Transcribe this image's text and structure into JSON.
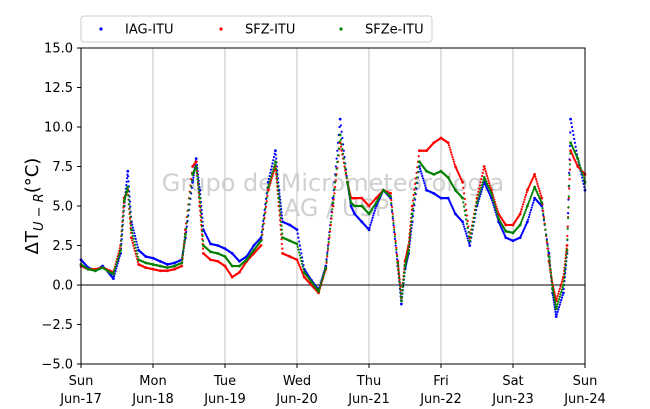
{
  "chart_data": {
    "type": "scatter",
    "title": "",
    "ylabel": "ΔT_{U−R}(°C)",
    "ylabel_parts": {
      "prefix": "ΔT",
      "sub": "U − R",
      "suffix": "(°C)"
    },
    "ylim": [
      -5.0,
      15.0
    ],
    "yticks": [
      "−5.0",
      "−2.5",
      "0.0",
      "2.5",
      "5.0",
      "7.5",
      "10.0",
      "12.5",
      "15.0"
    ],
    "ytick_values": [
      -5.0,
      -2.5,
      0.0,
      2.5,
      5.0,
      7.5,
      10.0,
      12.5,
      15.0
    ],
    "xlim": [
      0,
      7
    ],
    "xticks": [
      {
        "day": "Sun",
        "date": "Jun-17"
      },
      {
        "day": "Mon",
        "date": "Jun-18"
      },
      {
        "day": "Tue",
        "date": "Jun-19"
      },
      {
        "day": "Wed",
        "date": "Jun-20"
      },
      {
        "day": "Thu",
        "date": "Jun-21"
      },
      {
        "day": "Fri",
        "date": "Jun-22"
      },
      {
        "day": "Sat",
        "date": "Jun-23"
      },
      {
        "day": "Sun",
        "date": "Jun-24"
      }
    ],
    "grid": "vertical",
    "zero_line": true,
    "legend_placement": "top, above plot",
    "watermark": [
      "Grupo de Micrometeorologia",
      "IAG / USP"
    ],
    "series": [
      {
        "name": "IAG-ITU",
        "color": "#0000ff",
        "x": [
          0,
          0.1,
          0.2,
          0.3,
          0.4,
          0.45,
          0.55,
          0.6,
          0.65,
          0.7,
          0.8,
          0.9,
          1.0,
          1.1,
          1.2,
          1.3,
          1.4,
          1.45,
          1.55,
          1.6,
          1.65,
          1.7,
          1.8,
          1.9,
          2.0,
          2.1,
          2.2,
          2.3,
          2.4,
          2.5,
          2.6,
          2.7,
          2.75,
          2.8,
          2.9,
          3.0,
          3.1,
          3.2,
          3.3,
          3.4,
          3.5,
          3.6,
          3.7,
          3.75,
          3.8,
          3.9,
          4.0,
          4.1,
          4.2,
          4.3,
          4.4,
          4.45,
          4.5,
          4.55,
          4.6,
          4.7,
          4.8,
          4.9,
          5.0,
          5.1,
          5.2,
          5.3,
          5.4,
          5.5,
          5.6,
          5.7,
          5.8,
          5.9,
          6.0,
          6.1,
          6.2,
          6.3,
          6.4,
          6.5,
          6.55,
          6.6,
          6.7,
          6.75,
          6.8,
          6.9,
          7.0
        ],
        "y": [
          1.6,
          1.1,
          0.9,
          1.2,
          0.7,
          0.4,
          2.0,
          5.0,
          7.2,
          4.0,
          2.2,
          1.8,
          1.7,
          1.5,
          1.3,
          1.4,
          1.6,
          3.0,
          6.5,
          8.0,
          6.0,
          3.5,
          2.6,
          2.5,
          2.3,
          2.0,
          1.5,
          1.8,
          2.5,
          3.0,
          6.5,
          8.5,
          6.0,
          4.0,
          3.8,
          3.5,
          1.0,
          0.3,
          -0.3,
          1.2,
          5.5,
          10.5,
          6.5,
          5.0,
          4.5,
          4.0,
          3.5,
          5.0,
          6.0,
          5.5,
          1.2,
          -1.2,
          1.0,
          2.0,
          4.0,
          7.5,
          6.0,
          5.8,
          5.5,
          5.5,
          4.5,
          4.0,
          2.5,
          5.0,
          6.5,
          5.5,
          4.0,
          3.0,
          2.8,
          3.0,
          4.0,
          5.5,
          5.0,
          2.0,
          -0.5,
          -2.0,
          -0.5,
          2.0,
          10.5,
          8.0,
          6.0
        ]
      },
      {
        "name": "SFZ-ITU",
        "color": "#ff0000",
        "x": [
          0,
          0.1,
          0.2,
          0.3,
          0.4,
          0.45,
          0.55,
          0.6,
          0.65,
          0.7,
          0.8,
          0.9,
          1.0,
          1.1,
          1.2,
          1.3,
          1.4,
          1.45,
          1.55,
          1.6,
          1.65,
          1.7,
          1.8,
          1.9,
          2.0,
          2.1,
          2.2,
          2.3,
          2.4,
          2.5,
          2.6,
          2.7,
          2.75,
          2.8,
          2.9,
          3.0,
          3.1,
          3.2,
          3.3,
          3.4,
          3.5,
          3.6,
          3.7,
          3.75,
          3.8,
          3.9,
          4.0,
          4.1,
          4.2,
          4.3,
          4.4,
          4.45,
          4.5,
          4.55,
          4.6,
          4.7,
          4.8,
          4.9,
          5.0,
          5.1,
          5.2,
          5.3,
          5.4,
          5.5,
          5.6,
          5.7,
          5.8,
          5.9,
          6.0,
          6.1,
          6.2,
          6.3,
          6.4,
          6.5,
          6.55,
          6.6,
          6.7,
          6.75,
          6.8,
          6.9,
          7.0
        ],
        "y": [
          1.2,
          1.0,
          1.0,
          1.1,
          0.9,
          0.8,
          2.5,
          5.5,
          6.0,
          3.0,
          1.3,
          1.1,
          1.0,
          0.9,
          0.9,
          1.0,
          1.2,
          3.5,
          7.5,
          7.8,
          5.0,
          2.0,
          1.6,
          1.5,
          1.2,
          0.5,
          0.8,
          1.5,
          2.0,
          2.5,
          6.0,
          7.5,
          5.0,
          2.0,
          1.8,
          1.6,
          0.5,
          0.0,
          -0.5,
          1.0,
          5.0,
          9.0,
          6.5,
          5.5,
          5.5,
          5.5,
          5.0,
          5.5,
          6.0,
          5.8,
          1.5,
          -0.8,
          1.5,
          2.5,
          5.0,
          8.5,
          8.5,
          9.0,
          9.3,
          9.0,
          7.5,
          6.5,
          3.0,
          5.5,
          7.5,
          6.0,
          4.5,
          3.8,
          3.8,
          4.5,
          6.0,
          7.0,
          5.5,
          1.5,
          0.0,
          -1.0,
          0.5,
          2.5,
          8.5,
          7.5,
          7.0
        ]
      },
      {
        "name": "SFZe-ITU",
        "color": "#008000",
        "x": [
          0,
          0.1,
          0.2,
          0.3,
          0.4,
          0.45,
          0.55,
          0.6,
          0.65,
          0.7,
          0.8,
          0.9,
          1.0,
          1.1,
          1.2,
          1.3,
          1.4,
          1.45,
          1.55,
          1.6,
          1.65,
          1.7,
          1.8,
          1.9,
          2.0,
          2.1,
          2.2,
          2.3,
          2.4,
          2.5,
          2.6,
          2.7,
          2.75,
          2.8,
          2.9,
          3.0,
          3.1,
          3.2,
          3.3,
          3.4,
          3.5,
          3.6,
          3.7,
          3.75,
          3.8,
          3.9,
          4.0,
          4.1,
          4.2,
          4.3,
          4.4,
          4.45,
          4.5,
          4.55,
          4.6,
          4.7,
          4.8,
          4.9,
          5.0,
          5.1,
          5.2,
          5.3,
          5.4,
          5.5,
          5.6,
          5.7,
          5.8,
          5.9,
          6.0,
          6.1,
          6.2,
          6.3,
          6.4,
          6.5,
          6.55,
          6.6,
          6.7,
          6.75,
          6.8,
          6.9,
          7.0
        ],
        "y": [
          1.3,
          1.0,
          0.9,
          1.1,
          0.8,
          0.7,
          2.2,
          5.3,
          6.2,
          3.5,
          1.6,
          1.4,
          1.3,
          1.2,
          1.1,
          1.2,
          1.4,
          3.2,
          7.0,
          7.5,
          5.5,
          2.5,
          2.1,
          2.0,
          1.8,
          1.2,
          1.2,
          1.6,
          2.2,
          2.8,
          6.2,
          7.8,
          5.5,
          3.0,
          2.8,
          2.6,
          0.8,
          0.2,
          -0.4,
          1.1,
          5.2,
          9.5,
          6.5,
          5.2,
          5.0,
          5.0,
          4.5,
          5.2,
          6.0,
          5.6,
          1.4,
          -1.0,
          1.2,
          2.2,
          4.5,
          7.8,
          7.2,
          7.0,
          7.2,
          6.8,
          6.0,
          5.5,
          2.8,
          5.2,
          6.8,
          5.8,
          4.2,
          3.4,
          3.3,
          3.8,
          5.0,
          6.2,
          5.2,
          1.8,
          -0.2,
          -1.5,
          0.0,
          2.2,
          9.0,
          8.0,
          6.5
        ]
      }
    ]
  }
}
